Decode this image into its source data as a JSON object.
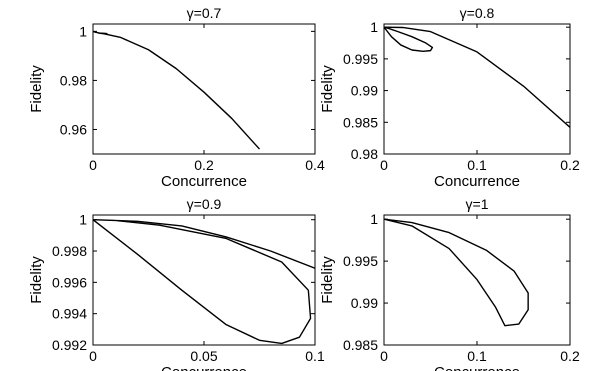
{
  "chart_data": [
    {
      "type": "line",
      "title": "γ=0.7",
      "xlabel": "Concurrence",
      "ylabel": "Fidelity",
      "xlim": [
        0,
        0.4
      ],
      "ylim": [
        0.95,
        1.003
      ],
      "xticks": [
        0,
        0.2,
        0.4
      ],
      "xtick_labels": [
        "0",
        "0.2",
        "0.4"
      ],
      "yticks": [
        0.96,
        0.98,
        1
      ],
      "ytick_labels": [
        "0.96",
        "0.98",
        "1"
      ],
      "series": [
        {
          "points": [
            [
              0,
              1.0
            ],
            [
              0.005,
              0.9996
            ],
            [
              0.012,
              0.9993
            ],
            [
              0.02,
              0.9992
            ],
            [
              0.025,
              0.9991
            ],
            [
              0.02,
              0.99905
            ],
            [
              0.01,
              0.9993
            ],
            [
              0.02,
              0.999
            ],
            [
              0.05,
              0.9975
            ],
            [
              0.1,
              0.9925
            ],
            [
              0.15,
              0.9848
            ],
            [
              0.2,
              0.9752
            ],
            [
              0.25,
              0.9645
            ],
            [
              0.3,
              0.952
            ]
          ]
        }
      ]
    },
    {
      "type": "line",
      "title": "γ=0.8",
      "xlabel": "Concurrence",
      "ylabel": "Fidelity",
      "xlim": [
        0,
        0.2
      ],
      "ylim": [
        0.98,
        1.0005
      ],
      "xticks": [
        0,
        0.1,
        0.2
      ],
      "xtick_labels": [
        "0",
        "0.1",
        "0.2"
      ],
      "yticks": [
        0.98,
        0.985,
        0.99,
        0.995,
        1
      ],
      "ytick_labels": [
        "0.98",
        "0.985",
        "0.99",
        "0.995",
        "1"
      ],
      "series": [
        {
          "points": [
            [
              0,
              1.0
            ],
            [
              0.008,
              0.9985
            ],
            [
              0.018,
              0.9972
            ],
            [
              0.03,
              0.9964
            ],
            [
              0.042,
              0.9962
            ],
            [
              0.05,
              0.9963
            ],
            [
              0.052,
              0.9968
            ],
            [
              0.045,
              0.9975
            ],
            [
              0.03,
              0.9985
            ],
            [
              0.015,
              0.9993
            ],
            [
              0.005,
              0.9998
            ],
            [
              0,
              1.0
            ],
            [
              0.02,
              0.99995
            ],
            [
              0.05,
              0.9993
            ],
            [
              0.1,
              0.9961
            ],
            [
              0.15,
              0.9907
            ],
            [
              0.2,
              0.9842
            ]
          ]
        }
      ]
    },
    {
      "type": "line",
      "title": "γ=0.9",
      "xlabel": "Concurrence",
      "ylabel": "Fidelity",
      "xlim": [
        0,
        0.1
      ],
      "ylim": [
        0.992,
        1.0003
      ],
      "xticks": [
        0,
        0.05,
        0.1
      ],
      "xtick_labels": [
        "0",
        "0.05",
        "0.1"
      ],
      "yticks": [
        0.992,
        0.994,
        0.996,
        0.998,
        1
      ],
      "ytick_labels": [
        "0.992",
        "0.994",
        "0.996",
        "0.998",
        "1"
      ],
      "series": [
        {
          "points": [
            [
              0,
              1.0
            ],
            [
              0.02,
              0.9978
            ],
            [
              0.04,
              0.9955
            ],
            [
              0.06,
              0.9933
            ],
            [
              0.075,
              0.9923
            ],
            [
              0.085,
              0.9921
            ],
            [
              0.093,
              0.9925
            ],
            [
              0.098,
              0.9937
            ],
            [
              0.097,
              0.9955
            ],
            [
              0.085,
              0.9973
            ],
            [
              0.06,
              0.9988
            ],
            [
              0.03,
              0.99965
            ],
            [
              0.01,
              0.99995
            ],
            [
              0,
              1.0
            ],
            [
              0.02,
              0.9999
            ],
            [
              0.04,
              0.9996
            ],
            [
              0.06,
              0.9989
            ],
            [
              0.08,
              0.998
            ],
            [
              0.1,
              0.9969
            ]
          ]
        }
      ]
    },
    {
      "type": "line",
      "title": "γ=1",
      "xlabel": "Concurrence",
      "ylabel": "Fidelity",
      "xlim": [
        0,
        0.2
      ],
      "ylim": [
        0.985,
        1.0005
      ],
      "xticks": [
        0,
        0.1,
        0.2
      ],
      "xtick_labels": [
        "0",
        "0.1",
        "0.2"
      ],
      "yticks": [
        0.985,
        0.99,
        0.995,
        1
      ],
      "ytick_labels": [
        "0.985",
        "0.99",
        "0.995",
        "1"
      ],
      "series": [
        {
          "points": [
            [
              0,
              1.0
            ],
            [
              0.03,
              0.9992
            ],
            [
              0.07,
              0.9965
            ],
            [
              0.1,
              0.9928
            ],
            [
              0.12,
              0.9895
            ],
            [
              0.13,
              0.9873
            ],
            [
              0.145,
              0.9875
            ],
            [
              0.155,
              0.9892
            ],
            [
              0.155,
              0.9912
            ],
            [
              0.14,
              0.9938
            ],
            [
              0.11,
              0.9963
            ],
            [
              0.07,
              0.9984
            ],
            [
              0.03,
              0.9996
            ],
            [
              0,
              1.0
            ]
          ]
        }
      ]
    }
  ]
}
